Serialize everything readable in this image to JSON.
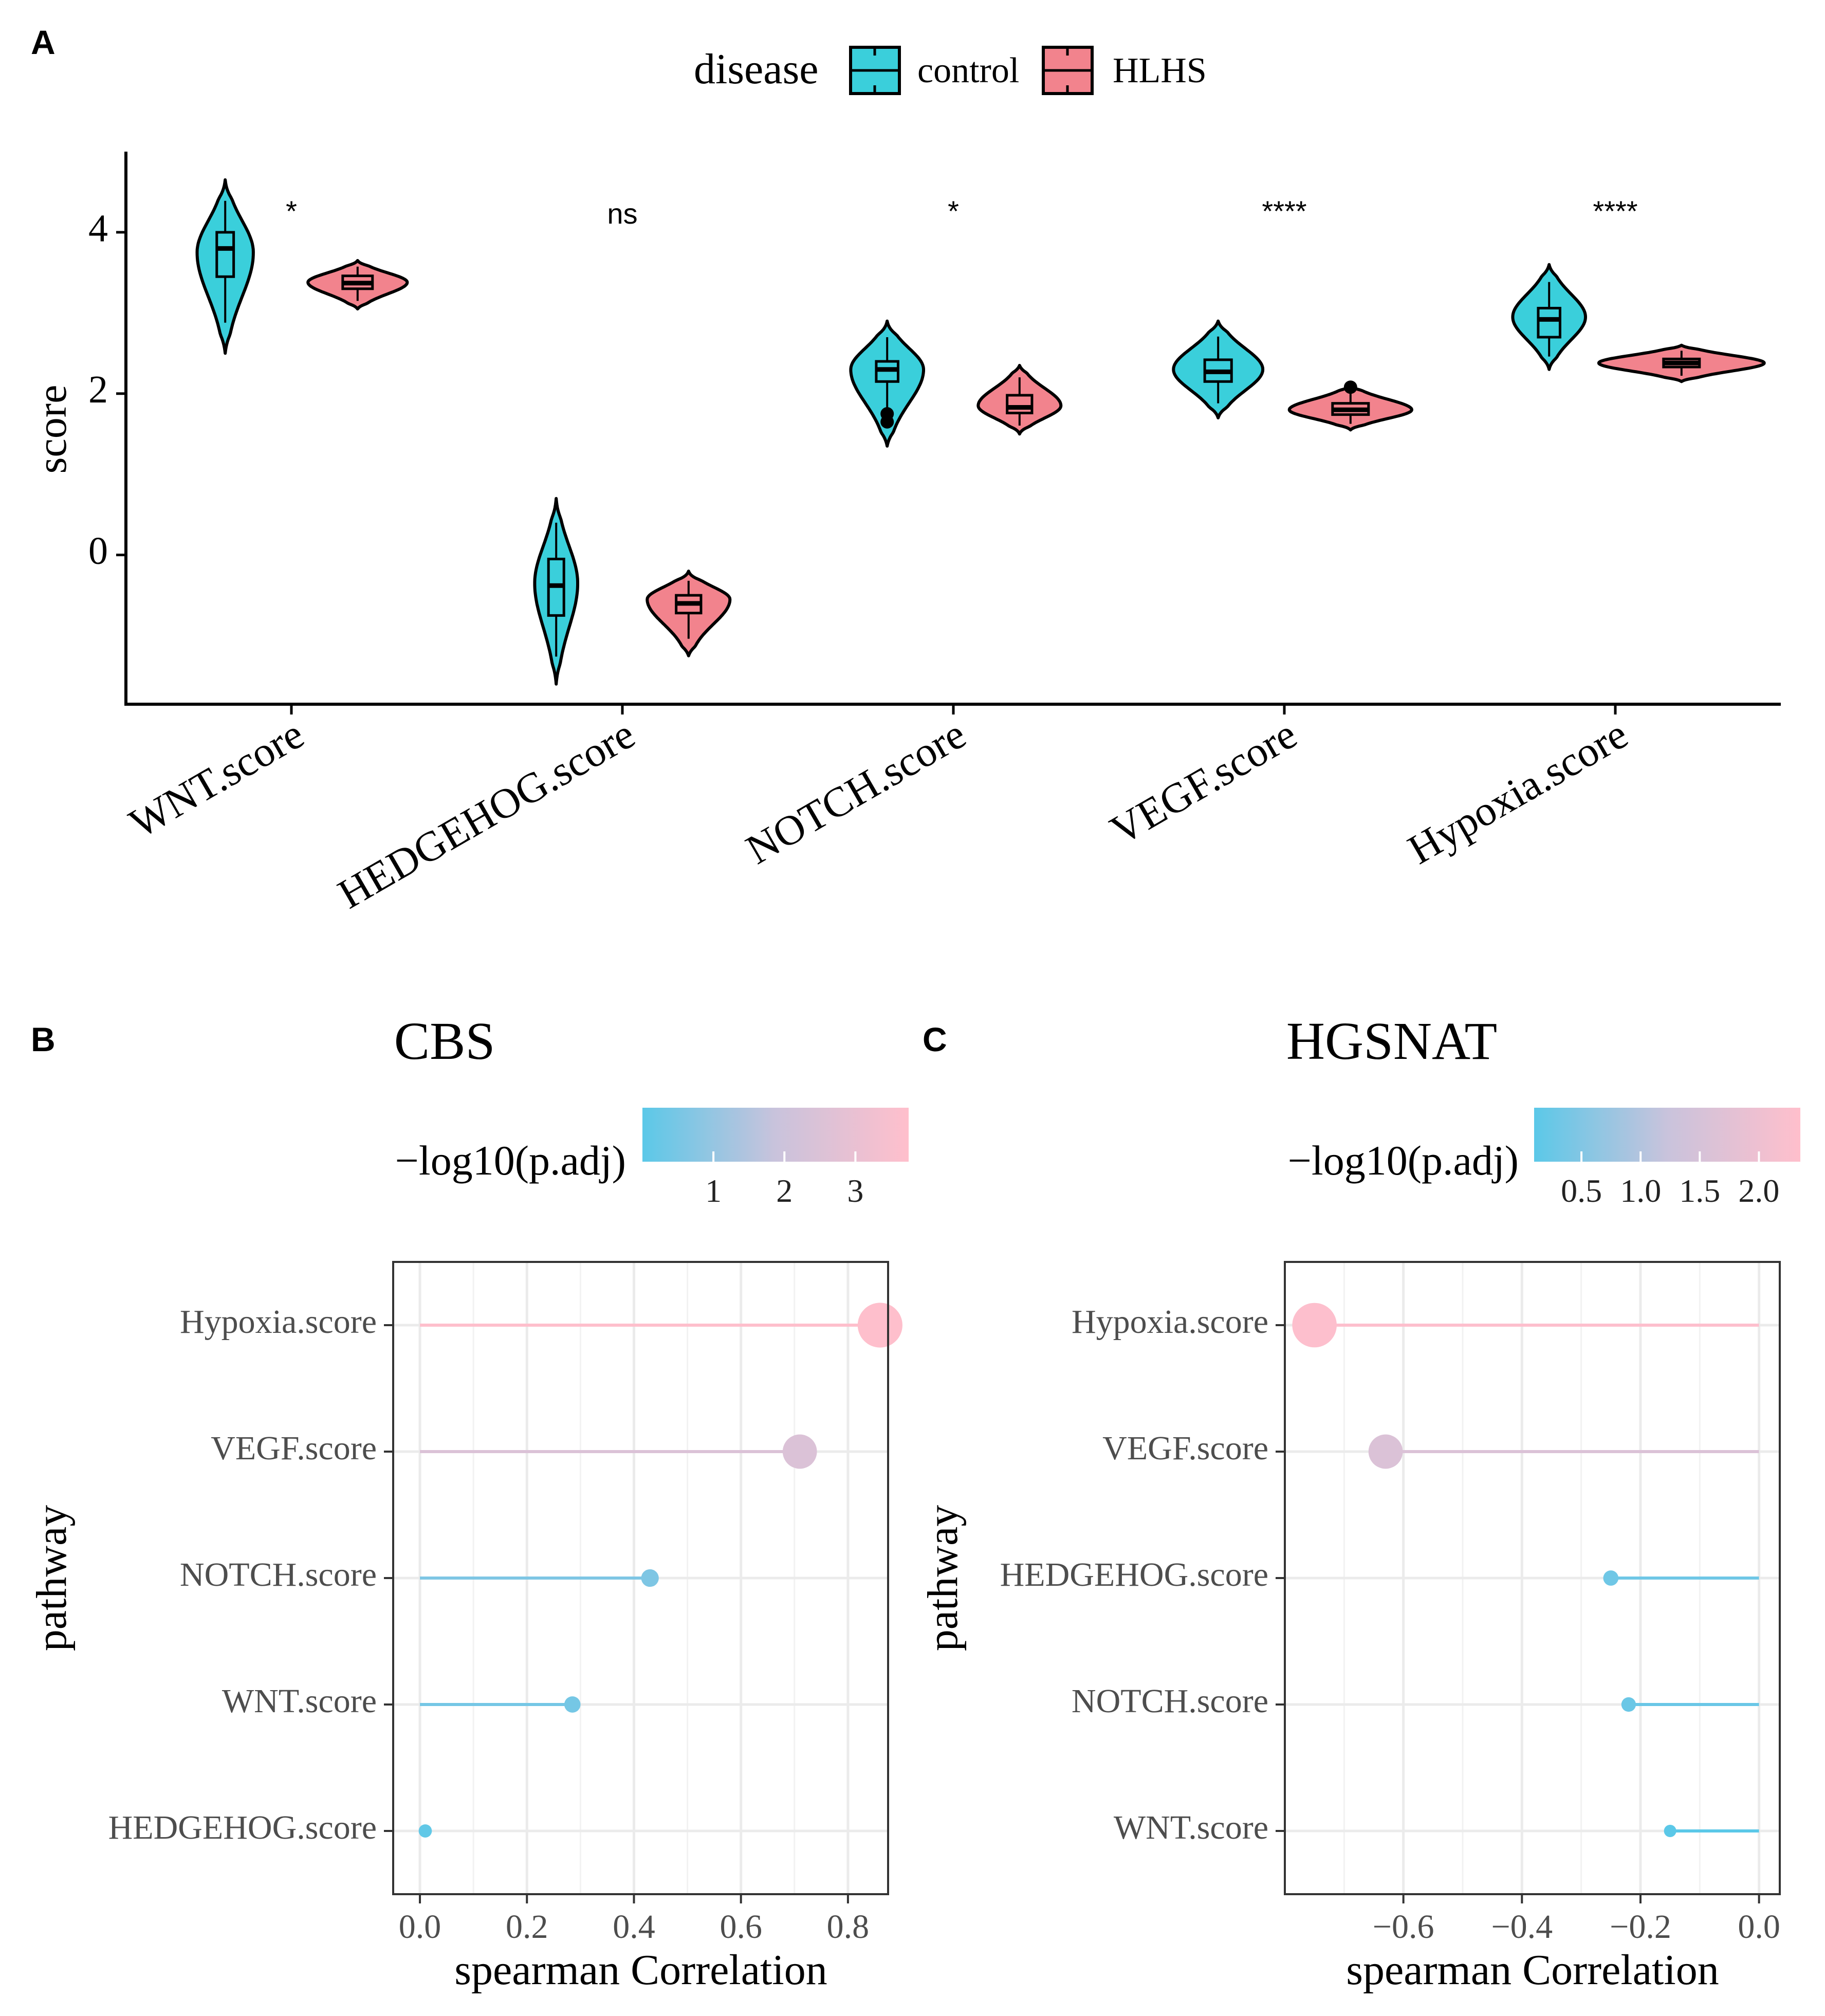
{
  "panel_labels": {
    "a": "A",
    "b": "B",
    "c": "C"
  },
  "legend": {
    "title": "disease",
    "entries": [
      "control",
      "HLHS"
    ],
    "colors": [
      "#3ACFDB",
      "#F2838D"
    ]
  },
  "colors": {
    "control": "#3ACFDB",
    "hlhs": "#F2838D",
    "low": "#5BC8E8",
    "high": "#FFBFCC",
    "line": "#000000",
    "grid": "#EBEBEB"
  },
  "chart_data": [
    {
      "type": "violin",
      "title": "",
      "xlabel": "",
      "ylabel": "score",
      "ylim": [
        -1.85,
        5.0
      ],
      "yticks": [
        0,
        2,
        4
      ],
      "categories": [
        "WNT.score",
        "HEDGEHOG.score",
        "NOTCH.score",
        "VEGF.score",
        "Hypoxia.score"
      ],
      "significance": [
        "*",
        "ns",
        "*",
        "****",
        "****"
      ],
      "series": [
        {
          "name": "control",
          "min": [
            2.5,
            -1.6,
            1.35,
            1.7,
            2.3
          ],
          "max": [
            4.65,
            0.7,
            2.9,
            2.9,
            3.6
          ],
          "q1": [
            3.45,
            -0.75,
            2.15,
            2.15,
            2.7
          ],
          "median": [
            3.8,
            -0.38,
            2.3,
            2.27,
            2.92
          ],
          "q3": [
            4.0,
            -0.05,
            2.4,
            2.42,
            3.06
          ],
          "mode": [
            3.75,
            -0.35,
            2.3,
            2.3,
            2.95
          ],
          "width": [
            0.17,
            0.13,
            0.22,
            0.27,
            0.22
          ],
          "outliers": [
            [],
            [],
            [
              1.75,
              1.65
            ],
            [],
            []
          ]
        },
        {
          "name": "HLHS",
          "min": [
            3.05,
            -1.25,
            1.5,
            1.55,
            2.15
          ],
          "max": [
            3.65,
            -0.2,
            2.35,
            2.1,
            2.6
          ],
          "q1": [
            3.3,
            -0.72,
            1.76,
            1.74,
            2.33
          ],
          "median": [
            3.37,
            -0.6,
            1.83,
            1.8,
            2.38
          ],
          "q3": [
            3.46,
            -0.5,
            1.98,
            1.88,
            2.43
          ],
          "mode": [
            3.38,
            -0.55,
            1.85,
            1.8,
            2.38
          ],
          "width": [
            0.3,
            0.25,
            0.25,
            0.37,
            0.5
          ],
          "outliers": [
            [],
            [],
            [],
            [
              2.08
            ],
            []
          ]
        }
      ]
    },
    {
      "type": "lollipop",
      "title": "CBS",
      "xlabel": "spearman Correlation",
      "ylabel": "pathway",
      "xlim": [
        -0.05,
        0.875
      ],
      "xticks": [
        0.0,
        0.2,
        0.4,
        0.6,
        0.8
      ],
      "xtick_labels": [
        "0.0",
        "0.2",
        "0.4",
        "0.6",
        "0.8"
      ],
      "colorbar": {
        "title": "−log10(p.adj)",
        "range": [
          0.0,
          3.75
        ],
        "ticks": [
          1,
          2,
          3
        ],
        "tick_labels": [
          "1",
          "2",
          "3"
        ]
      },
      "categories": [
        "Hypoxia.score",
        "VEGF.score",
        "NOTCH.score",
        "WNT.score",
        "HEDGEHOG.score"
      ],
      "values": [
        0.86,
        0.71,
        0.43,
        0.285,
        0.01
      ],
      "neglog10_padj": [
        3.7,
        2.5,
        0.6,
        0.45,
        0.1
      ]
    },
    {
      "type": "lollipop",
      "title": "HGSNAT",
      "xlabel": "spearman Correlation",
      "ylabel": "pathway",
      "xlim": [
        -0.8,
        0.035
      ],
      "xticks": [
        -0.6,
        -0.4,
        -0.2,
        0.0
      ],
      "xtick_labels": [
        "−0.6",
        "−0.4",
        "−0.2",
        "0.0"
      ],
      "colorbar": {
        "title": "−log10(p.adj)",
        "range": [
          0.1,
          2.35
        ],
        "ticks": [
          0.5,
          1.0,
          1.5,
          2.0
        ],
        "tick_labels": [
          "0.5",
          "1.0",
          "1.5",
          "2.0"
        ]
      },
      "categories": [
        "Hypoxia.score",
        "VEGF.score",
        "HEDGEHOG.score",
        "NOTCH.score",
        "WNT.score"
      ],
      "values": [
        -0.75,
        -0.63,
        -0.25,
        -0.22,
        -0.15
      ],
      "neglog10_padj": [
        2.3,
        1.6,
        0.3,
        0.25,
        0.1
      ]
    }
  ]
}
